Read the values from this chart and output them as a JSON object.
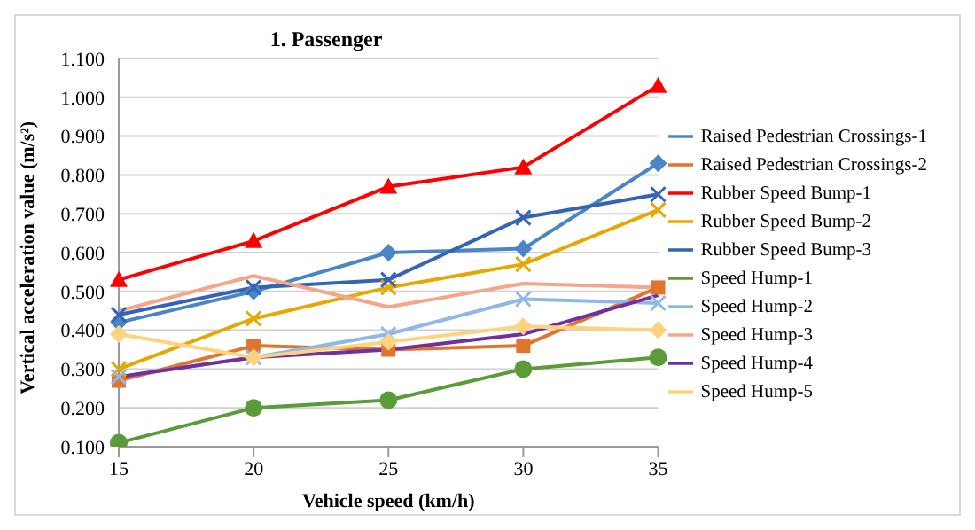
{
  "chart_data": {
    "type": "line",
    "title": "1. Passenger",
    "xlabel": "Vehicle speed (km/h)",
    "ylabel": "Vertical acceleration value (m/s²)",
    "categories": [
      "15",
      "20",
      "25",
      "30",
      "35"
    ],
    "ylim": [
      0.1,
      1.1
    ],
    "yticks": [
      {
        "value": 0.1,
        "label": "0.100"
      },
      {
        "value": 0.2,
        "label": "0.200"
      },
      {
        "value": 0.3,
        "label": "0.300"
      },
      {
        "value": 0.4,
        "label": "0.400"
      },
      {
        "value": 0.5,
        "label": "0.500"
      },
      {
        "value": 0.6,
        "label": "0.600"
      },
      {
        "value": 0.7,
        "label": "0.700"
      },
      {
        "value": 0.8,
        "label": "0.800"
      },
      {
        "value": 0.9,
        "label": "0.900"
      },
      {
        "value": 1.0,
        "label": "1.000"
      },
      {
        "value": 1.1,
        "label": "1.100"
      }
    ],
    "grid": "y",
    "legend": "right",
    "series": [
      {
        "name": "Raised Pedestrian Crossings-1",
        "color": "#4a86c5",
        "marker": "diamond",
        "values": [
          0.42,
          0.5,
          0.6,
          0.61,
          0.83
        ]
      },
      {
        "name": "Raised Pedestrian Crossings-2",
        "color": "#e0752d",
        "marker": "square",
        "values": [
          0.27,
          0.36,
          0.35,
          0.36,
          0.51
        ]
      },
      {
        "name": "Rubber Speed Bump-1",
        "color": "#ff0000",
        "marker": "triangle",
        "values": [
          0.53,
          0.63,
          0.77,
          0.82,
          1.03
        ]
      },
      {
        "name": "Rubber Speed Bump-2",
        "color": "#e6a800",
        "marker": "cross",
        "values": [
          0.3,
          0.43,
          0.51,
          0.57,
          0.71
        ]
      },
      {
        "name": "Rubber Speed Bump-3",
        "color": "#3563b5",
        "marker": "cross",
        "values": [
          0.44,
          0.51,
          0.53,
          0.69,
          0.75
        ]
      },
      {
        "name": "Speed Hump-1",
        "color": "#5b9b3a",
        "marker": "circle",
        "values": [
          0.11,
          0.2,
          0.22,
          0.3,
          0.33
        ]
      },
      {
        "name": "Speed Hump-2",
        "color": "#8fb8e8",
        "marker": "cross",
        "values": [
          0.28,
          0.33,
          0.39,
          0.48,
          0.47
        ]
      },
      {
        "name": "Speed Hump-3",
        "color": "#f4a58a",
        "marker": "none",
        "values": [
          0.45,
          0.54,
          0.46,
          0.52,
          0.51
        ]
      },
      {
        "name": "Speed Hump-4",
        "color": "#7030a0",
        "marker": "none",
        "values": [
          0.28,
          0.33,
          0.35,
          0.39,
          0.49
        ]
      },
      {
        "name": "Speed Hump-5",
        "color": "#ffd27f",
        "marker": "diamond",
        "values": [
          0.39,
          0.33,
          0.37,
          0.41,
          0.4
        ]
      }
    ]
  }
}
